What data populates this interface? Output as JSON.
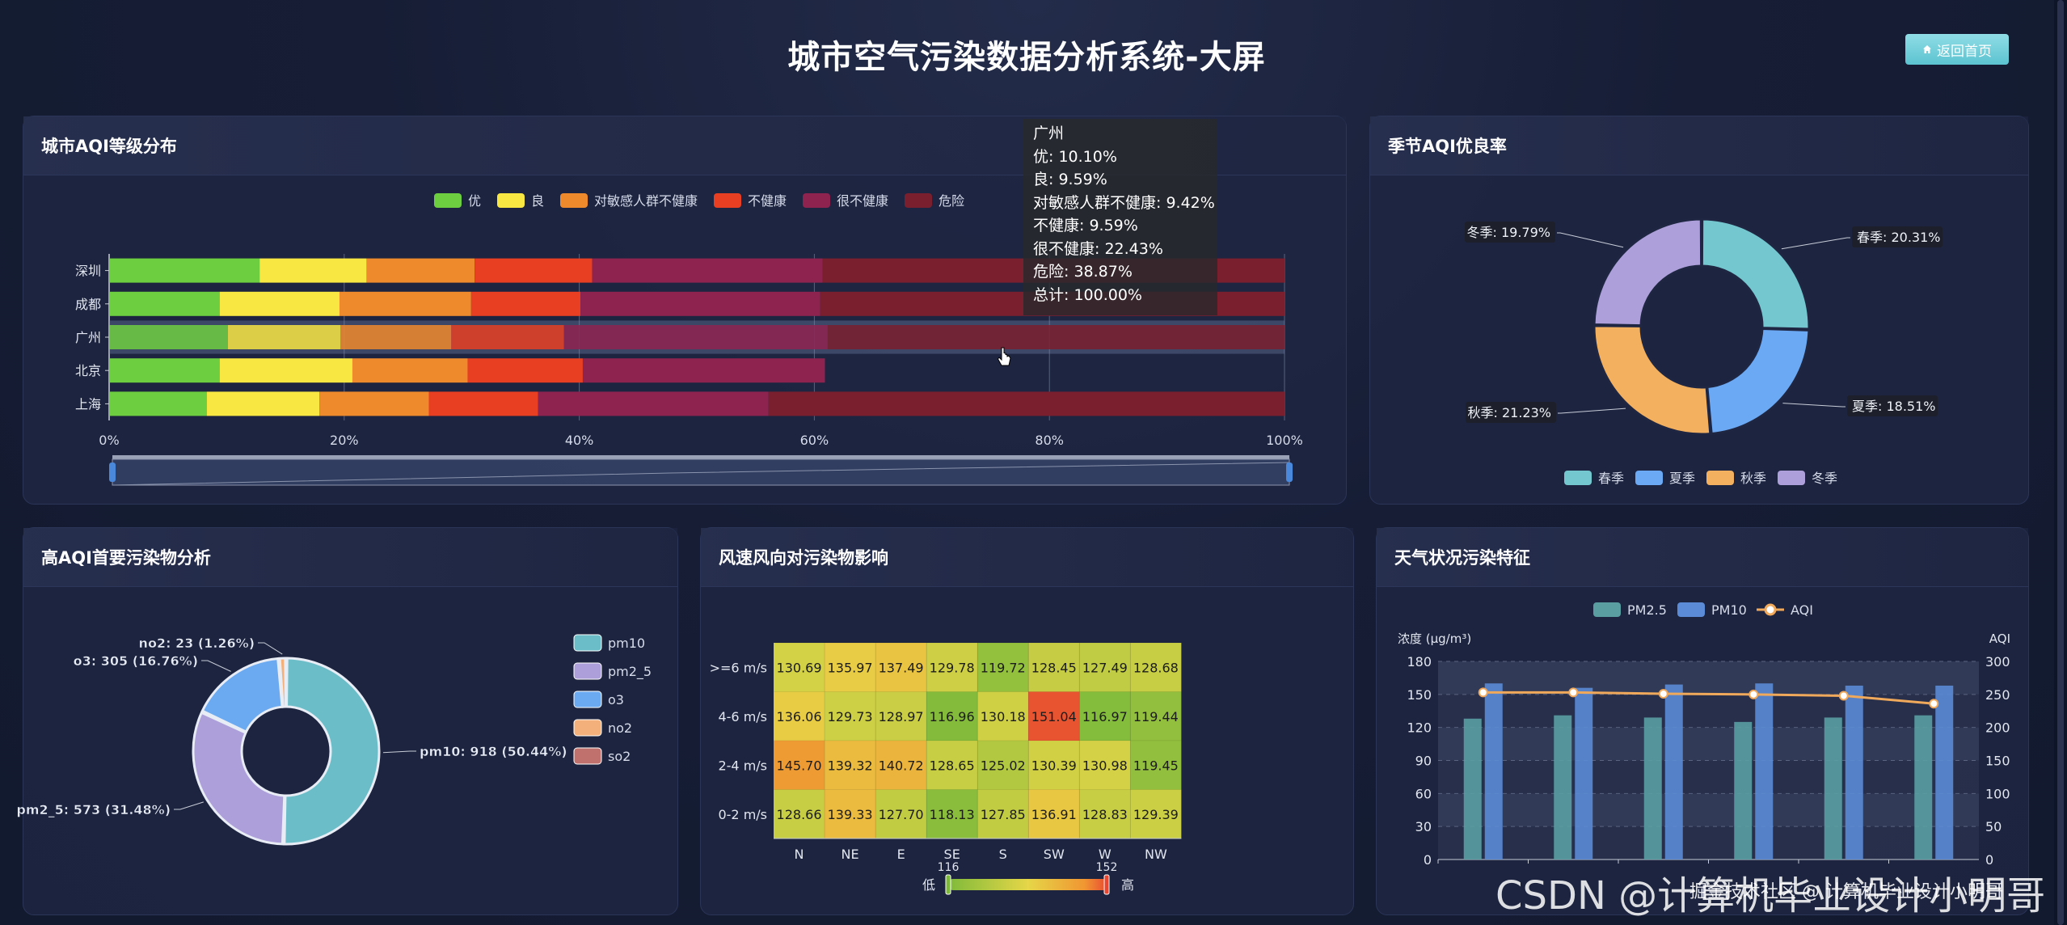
{
  "page": {
    "title": "城市空气污染数据分析系统-大屏",
    "home_button": "返回首页",
    "home_icon": "home-icon"
  },
  "panels": {
    "aqi_level": "城市AQI等级分布",
    "season": "季节AQI优良率",
    "pollutant": "高AQI首要污染物分析",
    "wind": "风速风向对污染物影响",
    "weather": "天气状况污染特征"
  },
  "tooltip": {
    "city": "广州",
    "lines": [
      "优: 10.10%",
      "良: 9.59%",
      "对敏感人群不健康: 9.42%",
      "不健康: 9.59%",
      "很不健康: 22.43%",
      "危险: 38.87%",
      "总计: 100.00%"
    ]
  },
  "watermark": {
    "big": "CSDN @计算机毕业设计小明哥",
    "small": "掘金技术社区 @ 计算机毕业设计小明哥"
  },
  "chart_data": [
    {
      "id": "aqi_level",
      "type": "bar",
      "orientation": "horizontal-stacked",
      "categories": [
        "上海",
        "北京",
        "广州",
        "成都",
        "深圳"
      ],
      "series": [
        {
          "name": "优",
          "color": "#6dcf3f",
          "values": [
            8.3,
            9.4,
            10.1,
            9.4,
            12.8
          ]
        },
        {
          "name": "良",
          "color": "#f8e742",
          "values": [
            9.6,
            11.3,
            9.59,
            10.2,
            9.1
          ]
        },
        {
          "name": "对敏感人群不健康",
          "color": "#ef8a2c",
          "values": [
            9.3,
            9.8,
            9.42,
            11.2,
            9.2
          ]
        },
        {
          "name": "不健康",
          "color": "#e83e22",
          "values": [
            9.3,
            9.8,
            9.59,
            9.3,
            10.0
          ]
        },
        {
          "name": "很不健康",
          "color": "#8e2350",
          "values": [
            19.6,
            20.6,
            22.43,
            20.4,
            19.6
          ]
        },
        {
          "name": "危险",
          "color": "#7a1f2e",
          "values": [
            43.9,
            0,
            38.87,
            39.5,
            39.3
          ]
        }
      ],
      "xticks": [
        "0%",
        "20%",
        "40%",
        "60%",
        "80%",
        "100%"
      ],
      "xlim": [
        0,
        100
      ],
      "legend": "top-center",
      "highlight": "广州"
    },
    {
      "id": "season",
      "type": "pie",
      "style": "donut",
      "slices": [
        {
          "name": "春季",
          "value": 20.31,
          "label": "春季: 20.31%",
          "color": "#74c7cf"
        },
        {
          "name": "夏季",
          "value": 18.51,
          "label": "夏季: 18.51%",
          "color": "#6ba9f5"
        },
        {
          "name": "秋季",
          "value": 21.23,
          "label": "秋季: 21.23%",
          "color": "#f3b05f"
        },
        {
          "name": "冬季",
          "value": 19.79,
          "label": "冬季: 19.79%",
          "color": "#ad9fda"
        }
      ],
      "legend": "bottom-center"
    },
    {
      "id": "pollutant",
      "type": "pie",
      "style": "donut",
      "slices": [
        {
          "name": "pm10",
          "value": 918,
          "label": "pm10: 918 (50.44%)",
          "color": "#6bbec8"
        },
        {
          "name": "pm2_5",
          "value": 573,
          "label": "pm2_5: 573 (31.48%)",
          "color": "#ad9fda"
        },
        {
          "name": "o3",
          "value": 305,
          "label": "o3: 305 (16.76%)",
          "color": "#6ba9f0"
        },
        {
          "name": "no2",
          "value": 23,
          "label": "no2: 23 (1.26%)",
          "color": "#f3b07a"
        },
        {
          "name": "so2",
          "value": 0,
          "label": "",
          "color": "#c0716e"
        }
      ],
      "legend": "right"
    },
    {
      "id": "wind",
      "type": "heatmap",
      "x": [
        "N",
        "NE",
        "E",
        "SE",
        "S",
        "SW",
        "W",
        "NW"
      ],
      "y": [
        ">=6 m/s",
        "4-6 m/s",
        "2-4 m/s",
        "0-2 m/s"
      ],
      "values": [
        [
          130.69,
          135.97,
          137.49,
          129.78,
          119.72,
          128.45,
          127.49,
          128.68
        ],
        [
          136.06,
          129.73,
          128.97,
          116.96,
          130.18,
          151.04,
          116.97,
          119.44
        ],
        [
          145.7,
          139.32,
          140.72,
          128.65,
          125.02,
          130.39,
          130.98,
          119.45
        ],
        [
          128.66,
          139.33,
          127.7,
          118.13,
          127.85,
          136.91,
          128.83,
          129.39
        ]
      ],
      "visual_map": {
        "min": 116,
        "max": 152,
        "low_label": "低",
        "high_label": "高",
        "min_label": "116",
        "max_label": "152"
      }
    },
    {
      "id": "weather",
      "type": "bar",
      "categories": [
        "",
        "",
        "",
        "",
        "",
        ""
      ],
      "series": [
        {
          "name": "PM2.5",
          "type": "bar",
          "values": [
            128,
            131,
            129,
            125,
            129,
            131
          ],
          "color": "#5a9ea2"
        },
        {
          "name": "PM10",
          "type": "bar",
          "values": [
            160,
            156,
            159,
            160,
            158,
            158
          ],
          "color": "#5b8bd6"
        },
        {
          "name": "AQI",
          "type": "line",
          "axis": "right",
          "values": [
            253,
            253,
            251,
            250,
            248,
            236
          ],
          "color": "#f0a85a"
        }
      ],
      "ylabel": "浓度 (μg/m³)",
      "ylabel_right": "AQI",
      "yticks": [
        "0",
        "30",
        "60",
        "90",
        "120",
        "150",
        "180"
      ],
      "yticks_right": [
        "0",
        "50",
        "100",
        "150",
        "200",
        "250",
        "300"
      ],
      "ylim": [
        0,
        180
      ],
      "ylim_right": [
        0,
        300
      ],
      "legend": "top-center"
    }
  ]
}
